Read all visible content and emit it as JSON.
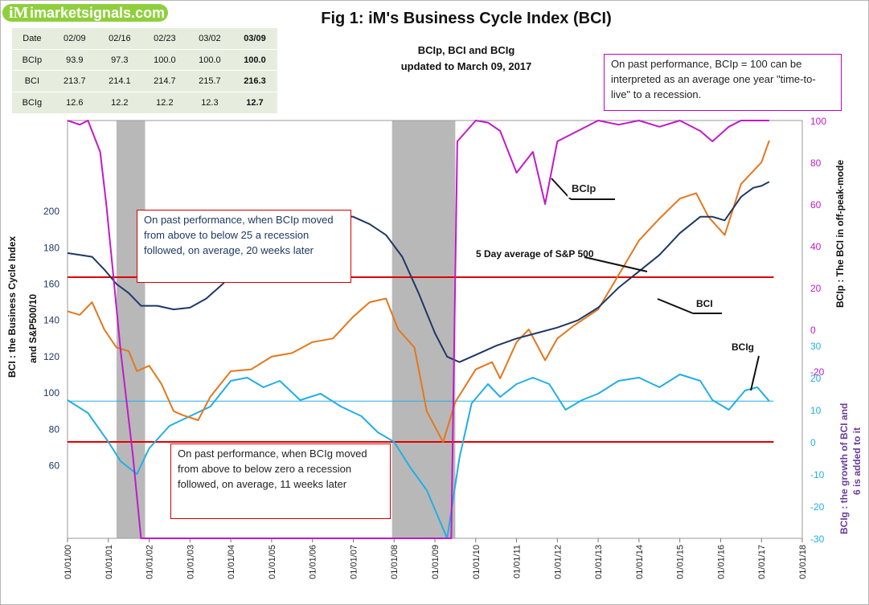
{
  "logo": {
    "icon": "iM",
    "text": "imarketsignals.com"
  },
  "header_table": {
    "columns": [
      "Date",
      "02/09",
      "02/16",
      "02/23",
      "03/02",
      "03/09"
    ],
    "rows": [
      {
        "label": "BCIp",
        "values": [
          "93.9",
          "97.3",
          "100.0",
          "100.0",
          "100.0"
        ]
      },
      {
        "label": "BCI",
        "values": [
          "213.7",
          "214.1",
          "214.7",
          "215.7",
          "216.3"
        ]
      },
      {
        "label": "BCIg",
        "values": [
          "12.6",
          "12.2",
          "12.2",
          "12.3",
          "12.7"
        ]
      }
    ]
  },
  "notes": {
    "time_to_live": "On past performance, BCIp = 100  can be interpreted as an average one year \"time-to-live\" to a recession.",
    "bcip_rule": "On past performance,  when BCIp moved from above to below 25 a recession followed, on average, 20 weeks later",
    "bcig_rule": "On past performance,  when BCIg moved from above to below zero a recession followed, on average, 11 weeks later"
  },
  "annotations": {
    "bcip": "BCIp",
    "sp500": "5 Day average of  S&P 500",
    "bci": "BCI",
    "bcig": "BCIg"
  },
  "chart_data": {
    "type": "line",
    "title": "Fig 1:  iM's Business Cycle Index (BCI)",
    "subtitle": [
      "BCIp, BCI and BCIg",
      "updated to March 09, 2017"
    ],
    "ylabel_left": [
      "BCI : the Business  Cycle  Index",
      "and   S&P500/10"
    ],
    "ylabel_right_top": "BCIp :  The BCI in off-peak-mode",
    "ylabel_right_bottom": [
      "BCIg :  the growth of BCI and",
      "6 is added to it"
    ],
    "x_ticks": [
      "01/01/00",
      "01/01/01",
      "01/01/02",
      "01/01/03",
      "01/01/04",
      "01/01/05",
      "01/01/06",
      "01/01/07",
      "01/01/08",
      "01/01/09",
      "01/01/10",
      "01/01/11",
      "01/01/12",
      "01/01/13",
      "01/01/14",
      "01/01/15",
      "01/01/16",
      "01/01/17",
      "01/01/18"
    ],
    "xlim": [
      2000,
      2018
    ],
    "y_left_ticks": [
      60,
      80,
      100,
      120,
      140,
      160,
      180,
      200
    ],
    "y_left_range": [
      20,
      250
    ],
    "y_right_top_ticks": [
      0,
      20,
      40,
      60,
      80,
      100
    ],
    "y_right_top_range": [
      -100,
      100
    ],
    "y_right_bottom_ticks": [
      -30,
      -20,
      -10,
      0,
      10,
      20,
      30
    ],
    "y_right_bottom_range": [
      -30,
      100
    ],
    "recessions": [
      [
        2001.2,
        2001.9
      ],
      [
        2007.95,
        2009.5
      ]
    ],
    "thresholds": {
      "bcip": 25,
      "bcig": 0
    },
    "grid": false,
    "series": [
      {
        "name": "BCI",
        "color": "#1f3864",
        "axis": "left",
        "x": [
          2000.0,
          2000.3,
          2000.6,
          2000.9,
          2001.2,
          2001.5,
          2001.8,
          2002.2,
          2002.6,
          2003.0,
          2003.4,
          2003.8,
          2004.2,
          2004.6,
          2005.0,
          2005.4,
          2005.8,
          2006.2,
          2006.6,
          2007.0,
          2007.4,
          2007.8,
          2008.2,
          2008.6,
          2009.0,
          2009.3,
          2009.6,
          2010.0,
          2010.5,
          2011.0,
          2011.5,
          2012.0,
          2012.5,
          2013.0,
          2013.5,
          2014.0,
          2014.5,
          2015.0,
          2015.5,
          2015.8,
          2016.1,
          2016.5,
          2016.8,
          2017.0,
          2017.19
        ],
        "values": [
          177,
          176,
          175,
          168,
          160,
          155,
          148,
          148,
          146,
          147,
          152,
          160,
          170,
          178,
          186,
          191,
          196,
          199,
          198,
          197,
          193,
          187,
          175,
          155,
          133,
          120,
          117,
          121,
          126,
          130,
          133,
          136,
          140,
          147,
          158,
          167,
          176,
          188,
          197,
          197,
          195,
          208,
          213,
          214,
          216.3
        ]
      },
      {
        "name": "S&P 500",
        "color": "#e4771c",
        "axis": "left",
        "x": [
          2000.0,
          2000.3,
          2000.6,
          2000.9,
          2001.2,
          2001.5,
          2001.7,
          2002.0,
          2002.3,
          2002.6,
          2002.8,
          2003.2,
          2003.5,
          2004.0,
          2004.5,
          2005.0,
          2005.5,
          2006.0,
          2006.5,
          2007.0,
          2007.4,
          2007.8,
          2008.1,
          2008.5,
          2008.8,
          2009.2,
          2009.5,
          2010.0,
          2010.4,
          2010.6,
          2011.0,
          2011.3,
          2011.7,
          2012.0,
          2012.4,
          2013.0,
          2013.5,
          2014.0,
          2014.5,
          2015.0,
          2015.4,
          2015.7,
          2016.1,
          2016.5,
          2017.0,
          2017.19
        ],
        "values": [
          145,
          143,
          150,
          135,
          125,
          123,
          112,
          115,
          105,
          90,
          88,
          85,
          98,
          112,
          113,
          120,
          122,
          128,
          130,
          142,
          150,
          152,
          135,
          125,
          90,
          73,
          95,
          113,
          117,
          108,
          128,
          135,
          118,
          130,
          137,
          146,
          165,
          184,
          196,
          207,
          210,
          197,
          187,
          215,
          227,
          239
        ]
      },
      {
        "name": "BCIg",
        "color": "#21aee7",
        "axis": "right_bottom",
        "x": [
          2000.0,
          2000.5,
          2001.0,
          2001.3,
          2001.7,
          2002.0,
          2002.5,
          2003.0,
          2003.5,
          2004.0,
          2004.4,
          2004.8,
          2005.2,
          2005.7,
          2006.2,
          2006.7,
          2007.2,
          2007.6,
          2008.0,
          2008.4,
          2008.8,
          2009.1,
          2009.3,
          2009.6,
          2009.9,
          2010.3,
          2010.6,
          2011.0,
          2011.4,
          2011.8,
          2012.2,
          2012.6,
          2013.0,
          2013.5,
          2014.0,
          2014.5,
          2015.0,
          2015.5,
          2015.8,
          2016.2,
          2016.6,
          2016.9,
          2017.19
        ],
        "values": [
          13,
          9,
          0,
          -6,
          -10,
          -2,
          5,
          8,
          11,
          19,
          20,
          17,
          19,
          13,
          15,
          11,
          8,
          3,
          0,
          -8,
          -15,
          -24,
          -30,
          -5,
          12,
          18,
          14,
          18,
          20,
          18,
          10,
          13,
          15,
          19,
          20,
          17,
          21,
          19,
          13,
          10,
          16,
          17,
          12.7
        ]
      },
      {
        "name": "BCIp",
        "color": "#c21ac8",
        "axis": "right_top",
        "x": [
          2000.0,
          2000.3,
          2000.5,
          2000.8,
          2000.95,
          2001.1,
          2001.3,
          2001.6,
          2001.8,
          2002.0,
          2002.3,
          2002.6,
          2003.0,
          2003.4,
          2003.8,
          2004.2,
          2004.5,
          2004.8,
          2005.2,
          2005.5,
          2005.9,
          2006.2,
          2006.6,
          2006.9,
          2007.2,
          2007.5,
          2007.8,
          2008.0,
          2008.3,
          2008.6,
          2009.0,
          2009.4,
          2009.55,
          2010.0,
          2010.3,
          2010.6,
          2011.0,
          2011.4,
          2011.7,
          2012.0,
          2012.5,
          2013.0,
          2013.5,
          2014.0,
          2014.5,
          2015.0,
          2015.5,
          2015.8,
          2016.2,
          2016.5,
          2017.0,
          2017.19
        ],
        "values": [
          100,
          98,
          100,
          85,
          60,
          30,
          -10,
          -60,
          -100,
          -100,
          -100,
          -100,
          -100,
          -100,
          -100,
          -100,
          -100,
          -100,
          -100,
          -100,
          -100,
          -100,
          -100,
          -100,
          -100,
          -100,
          -100,
          -100,
          -100,
          -100,
          -100,
          -100,
          90,
          100,
          99,
          95,
          75,
          85,
          60,
          90,
          95,
          100,
          98,
          100,
          97,
          100,
          95,
          90,
          97,
          100,
          100,
          100
        ]
      }
    ]
  }
}
